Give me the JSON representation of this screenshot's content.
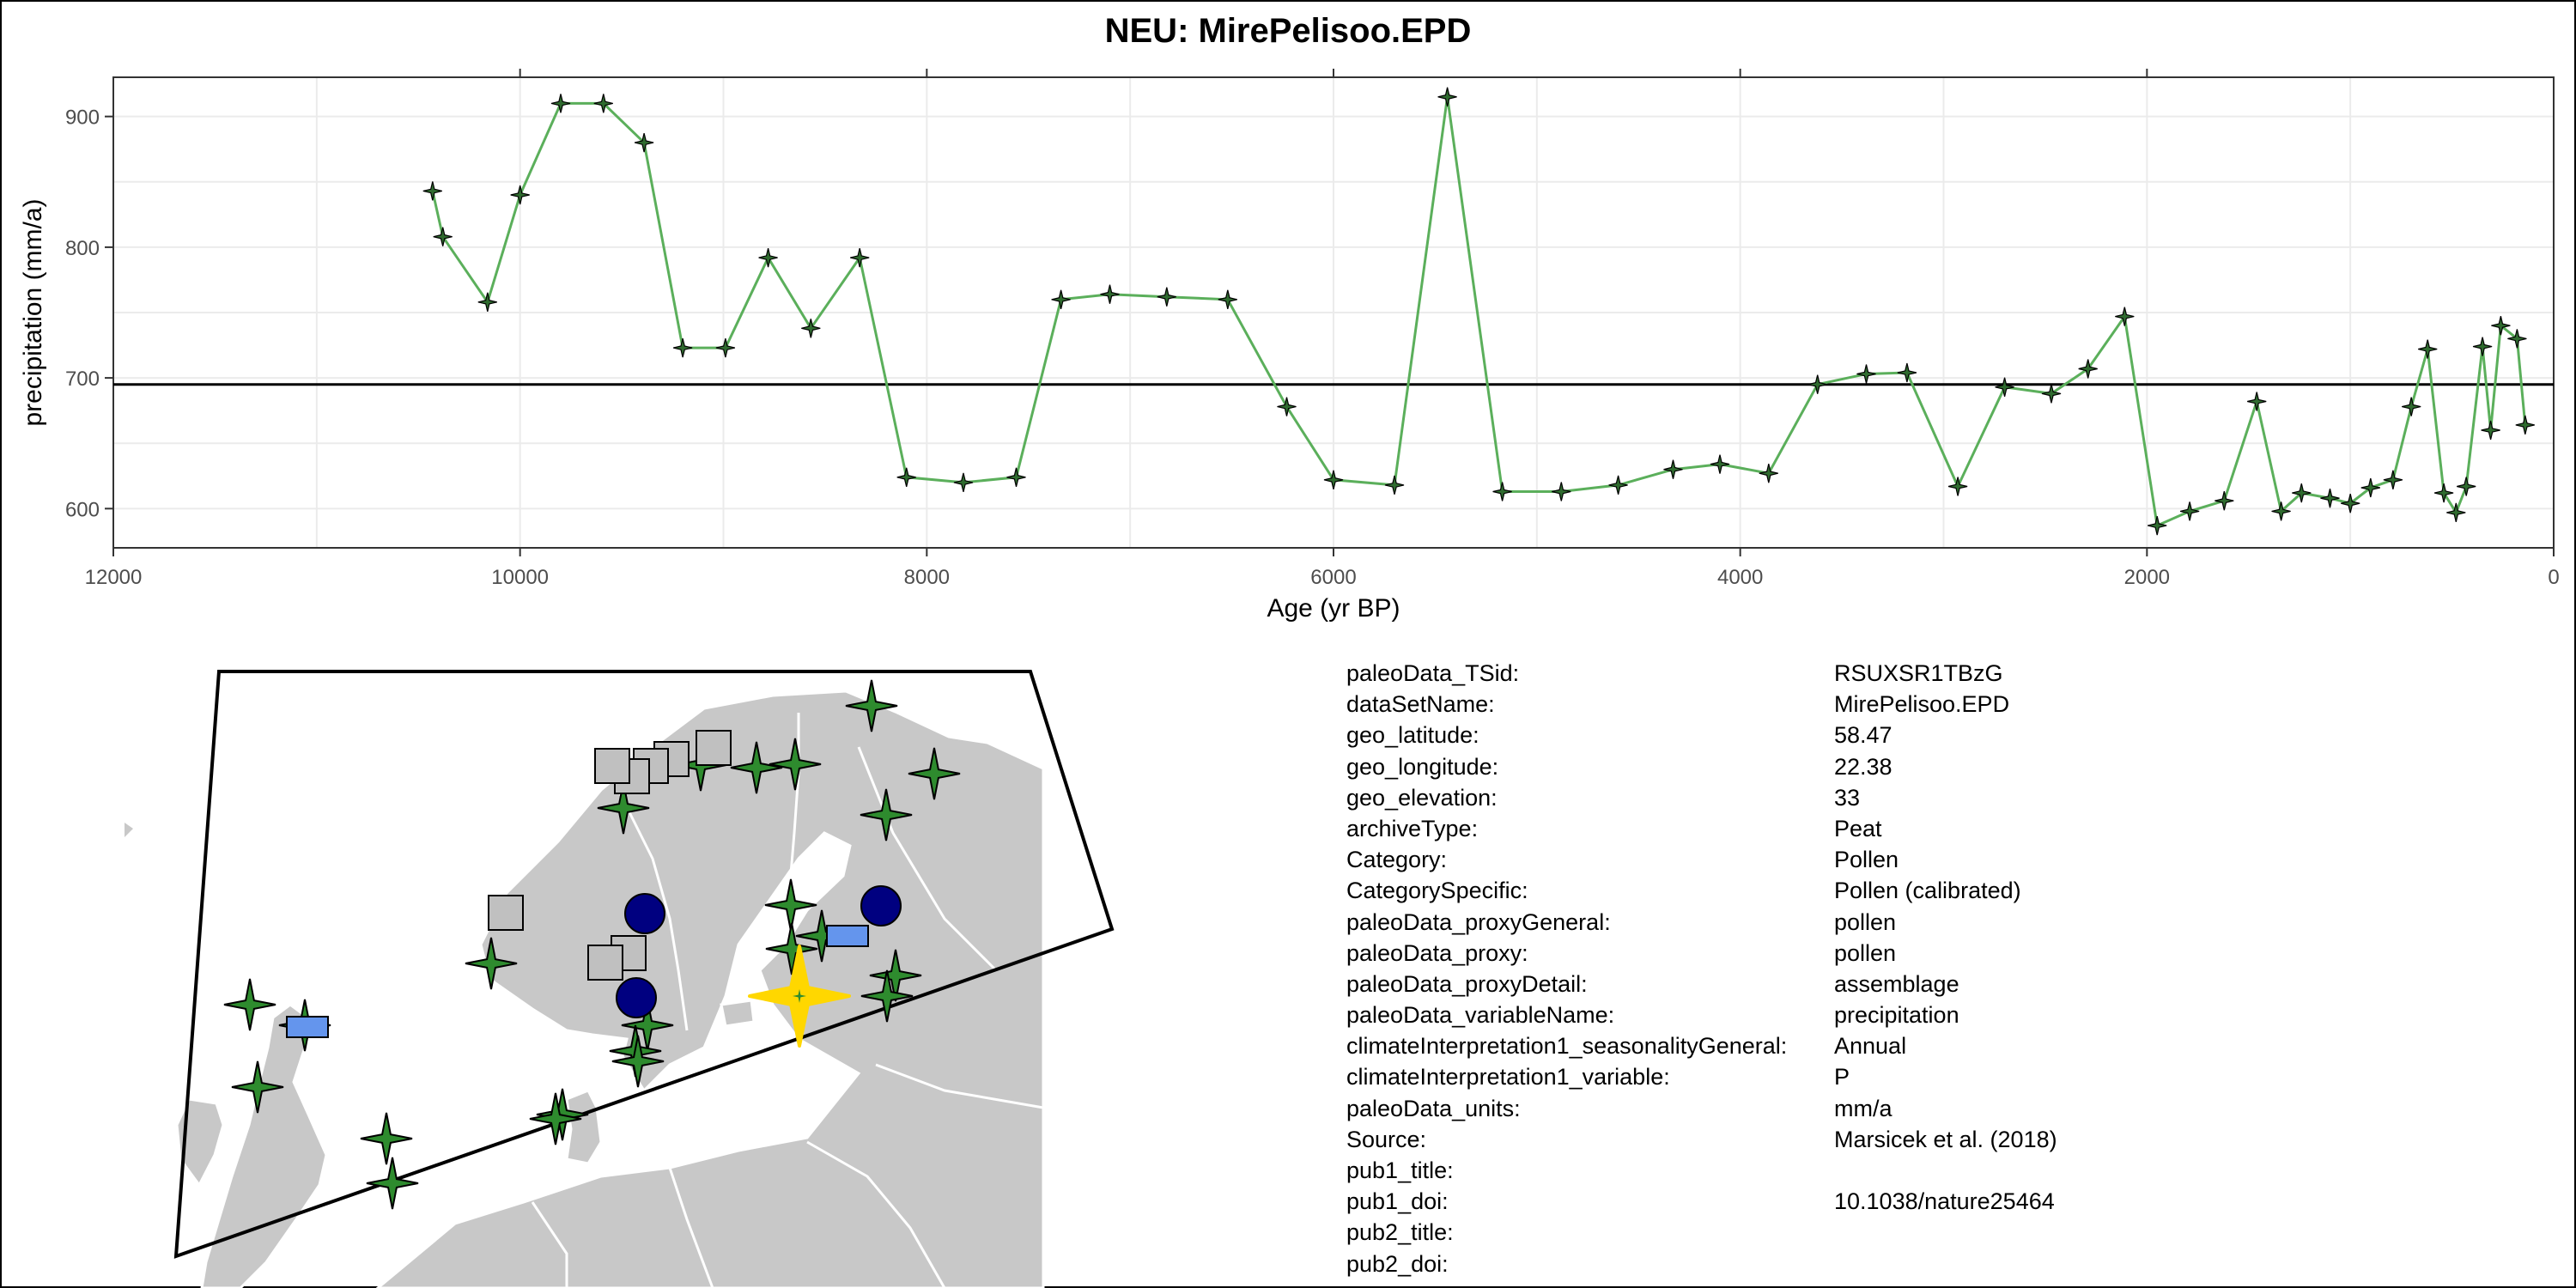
{
  "title": "NEU: MirePelisoo.EPD",
  "colors": {
    "line": "#5BAF5B",
    "marker": "#2F8A2F",
    "highlight": "#FFD700",
    "land": "#C8C8C8",
    "border": "#FFFFFF",
    "circle": "#000080",
    "square": "#C0C0C0",
    "rect": "#6495ED"
  },
  "chart_data": {
    "type": "line",
    "title": "NEU: MirePelisoo.EPD",
    "xlabel": "Age (yr BP)",
    "ylabel": "precipitation (mm/a)",
    "xlim": [
      12000,
      0
    ],
    "ylim": [
      570,
      930
    ],
    "x_reversed": true,
    "grid": true,
    "xticks": [
      12000,
      10000,
      8000,
      6000,
      4000,
      2000,
      0
    ],
    "yticks": [
      600,
      700,
      800,
      900
    ],
    "reference_line": 695,
    "series": [
      {
        "x": [
          10430,
          10380,
          10160,
          10000,
          9800,
          9590,
          9390,
          9200,
          8990,
          8780,
          8570,
          8330,
          8100,
          7820,
          7560,
          7340,
          7100,
          6820,
          6520,
          6230,
          6000,
          5700,
          5440,
          5170,
          4880,
          4600,
          4330,
          4100,
          3860,
          3620,
          3380,
          3180,
          2930,
          2700,
          2470,
          2290,
          2110,
          1950,
          1790,
          1620,
          1460,
          1340,
          1240,
          1100,
          1000,
          900,
          790,
          700,
          620,
          540,
          480,
          430,
          350,
          310,
          260,
          180,
          140
        ],
        "y": [
          843,
          808,
          758,
          840,
          910,
          910,
          880,
          723,
          723,
          792,
          738,
          792,
          624,
          620,
          624,
          760,
          764,
          762,
          760,
          678,
          622,
          618,
          915,
          613,
          613,
          618,
          630,
          634,
          627,
          695,
          703,
          704,
          617,
          693,
          688,
          707,
          747,
          587,
          598,
          606,
          682,
          598,
          612,
          608,
          604,
          616,
          622,
          678,
          722,
          612,
          597,
          617,
          724,
          660,
          740,
          730,
          664
        ]
      }
    ]
  },
  "map": {
    "markers": [
      {
        "shape": "star",
        "x": 875,
        "y": 52
      },
      {
        "shape": "star",
        "x": 948,
        "y": 131
      },
      {
        "shape": "star",
        "x": 892,
        "y": 179
      },
      {
        "shape": "star",
        "x": 741,
        "y": 124
      },
      {
        "shape": "star",
        "x": 786,
        "y": 120
      },
      {
        "shape": "star",
        "x": 676,
        "y": 121
      },
      {
        "shape": "star",
        "x": 586,
        "y": 171
      },
      {
        "shape": "star",
        "x": 781,
        "y": 284
      },
      {
        "shape": "star",
        "x": 817,
        "y": 320
      },
      {
        "shape": "star",
        "x": 782,
        "y": 335
      },
      {
        "shape": "star",
        "x": 432,
        "y": 352
      },
      {
        "shape": "star",
        "x": 614,
        "y": 424
      },
      {
        "shape": "star",
        "x": 600,
        "y": 454
      },
      {
        "shape": "star",
        "x": 903,
        "y": 366
      },
      {
        "shape": "star",
        "x": 893,
        "y": 390
      },
      {
        "shape": "star",
        "x": 151,
        "y": 400
      },
      {
        "shape": "star",
        "x": 215,
        "y": 424
      },
      {
        "shape": "star",
        "x": 160,
        "y": 496
      },
      {
        "shape": "star",
        "x": 603,
        "y": 466
      },
      {
        "shape": "star",
        "x": 515,
        "y": 528
      },
      {
        "shape": "star",
        "x": 507,
        "y": 533
      },
      {
        "shape": "star",
        "x": 310,
        "y": 556
      },
      {
        "shape": "star",
        "x": 317,
        "y": 608
      },
      {
        "shape": "square",
        "x": 691,
        "y": 101
      },
      {
        "shape": "square",
        "x": 642,
        "y": 114
      },
      {
        "shape": "square",
        "x": 618,
        "y": 122
      },
      {
        "shape": "square",
        "x": 596,
        "y": 134
      },
      {
        "shape": "square",
        "x": 573,
        "y": 122
      },
      {
        "shape": "square",
        "x": 449,
        "y": 293
      },
      {
        "shape": "square",
        "x": 592,
        "y": 340
      },
      {
        "shape": "square",
        "x": 565,
        "y": 351
      },
      {
        "shape": "circle",
        "x": 611,
        "y": 294
      },
      {
        "shape": "circle",
        "x": 886,
        "y": 285
      },
      {
        "shape": "circle",
        "x": 601,
        "y": 392
      },
      {
        "shape": "rect",
        "x": 847,
        "y": 320
      },
      {
        "shape": "rect",
        "x": 218,
        "y": 426
      }
    ],
    "highlight": {
      "x": 791,
      "y": 390
    }
  },
  "info": [
    {
      "key": "paleoData_TSid:",
      "value": "RSUXSR1TBzG"
    },
    {
      "key": "dataSetName:",
      "value": "MirePelisoo.EPD"
    },
    {
      "key": "geo_latitude:",
      "value": "58.47"
    },
    {
      "key": "geo_longitude:",
      "value": "22.38"
    },
    {
      "key": "geo_elevation:",
      "value": "33"
    },
    {
      "key": "archiveType:",
      "value": "Peat"
    },
    {
      "key": "Category:",
      "value": "Pollen"
    },
    {
      "key": "CategorySpecific:",
      "value": "Pollen (calibrated)"
    },
    {
      "key": "paleoData_proxyGeneral:",
      "value": "pollen"
    },
    {
      "key": "paleoData_proxy:",
      "value": "pollen"
    },
    {
      "key": "paleoData_proxyDetail:",
      "value": "assemblage"
    },
    {
      "key": "paleoData_variableName:",
      "value": "precipitation"
    },
    {
      "key": "climateInterpretation1_seasonalityGeneral:",
      "value": "Annual"
    },
    {
      "key": "climateInterpretation1_variable:",
      "value": "P"
    },
    {
      "key": "paleoData_units:",
      "value": "mm/a"
    },
    {
      "key": "Source:",
      "value": "Marsicek et al. (2018)"
    },
    {
      "key": "pub1_title:",
      "value": ""
    },
    {
      "key": "pub1_doi:",
      "value": "10.1038/nature25464"
    },
    {
      "key": "pub2_title:",
      "value": ""
    },
    {
      "key": "pub2_doi:",
      "value": ""
    }
  ]
}
